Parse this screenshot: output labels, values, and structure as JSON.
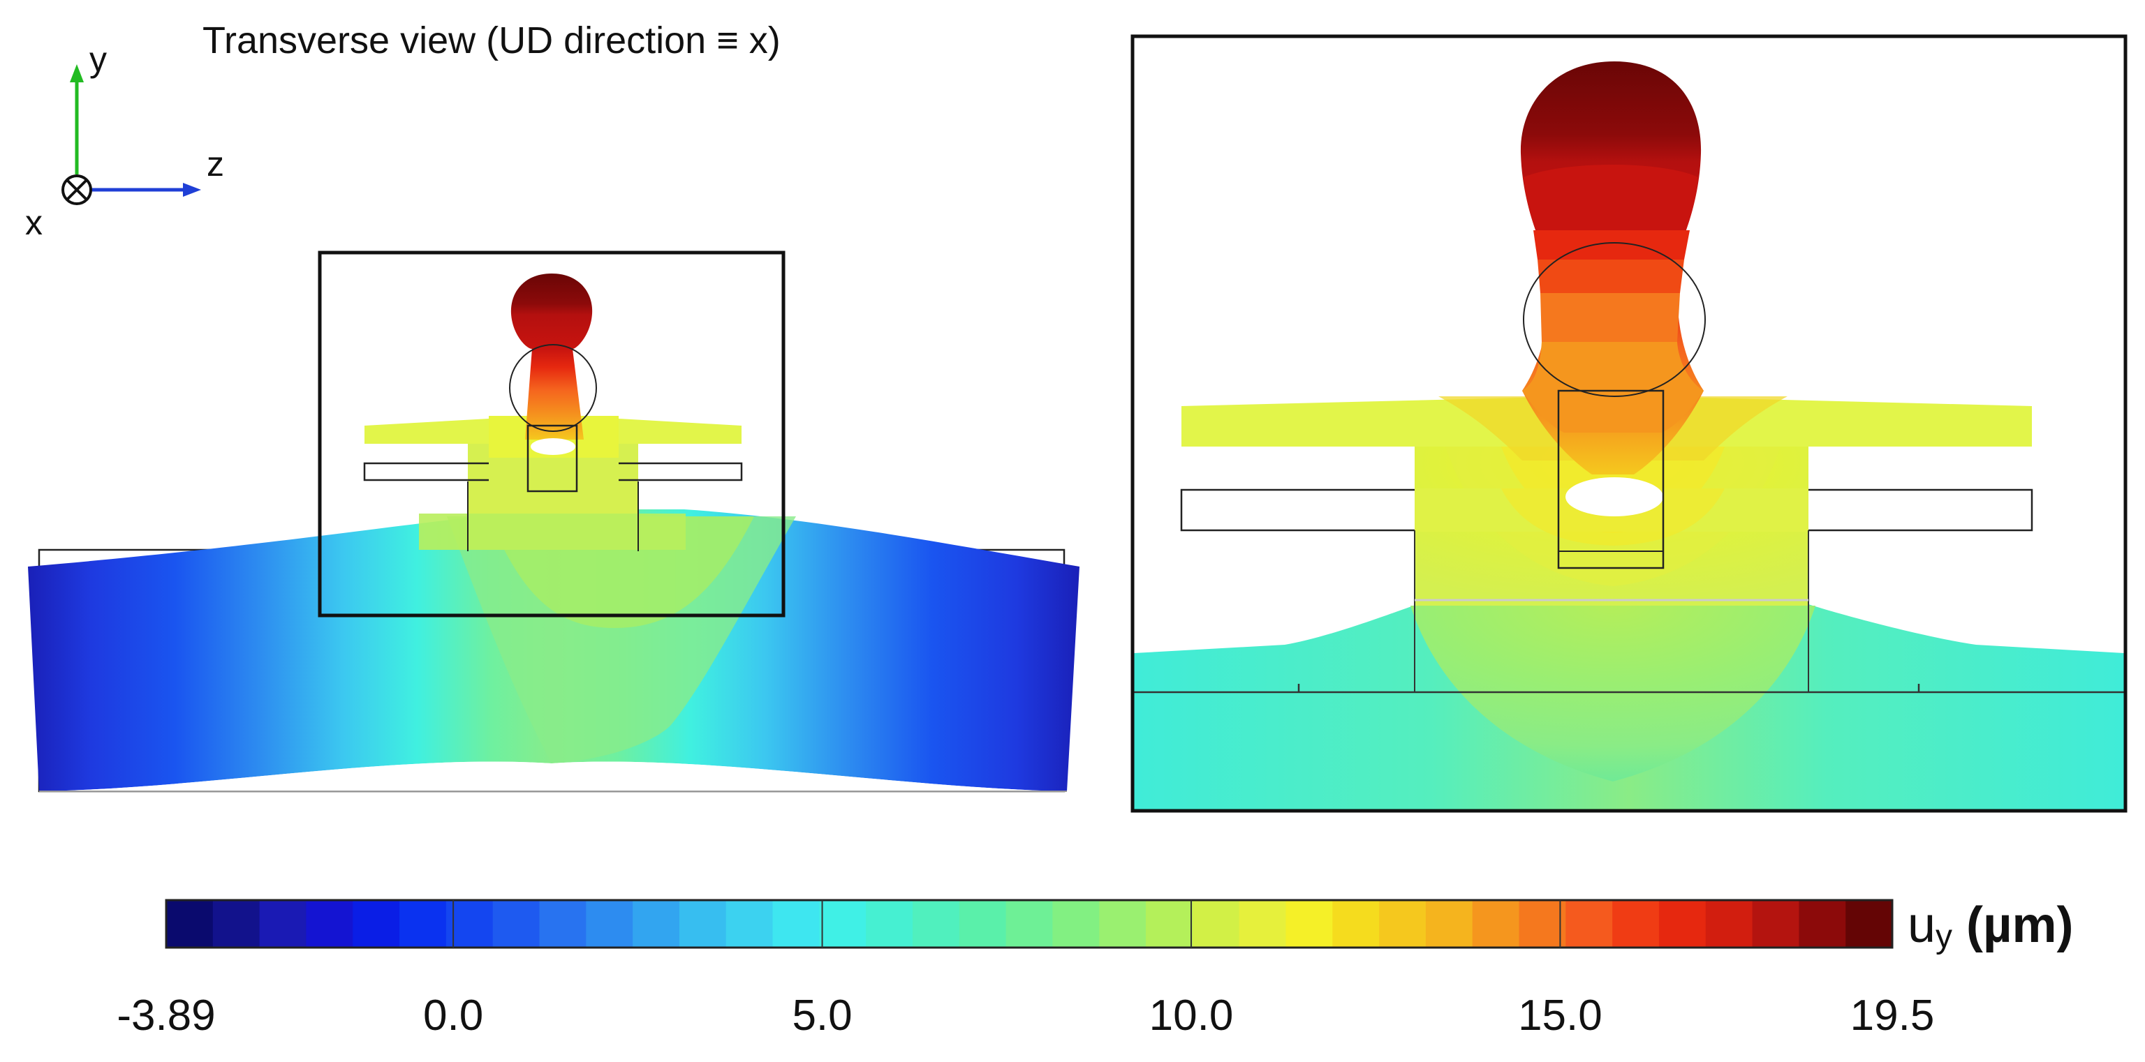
{
  "title": "Transverse view (UD direction ≡ x)",
  "axes": {
    "y_label": "y",
    "z_label": "z",
    "x_label": "x",
    "y_color": "#22bb22",
    "z_color": "#1f3fd6",
    "x_symbol": "circle-cross"
  },
  "colorbar": {
    "label": "uy (µm)",
    "label_main": "u",
    "label_sub": "y",
    "label_unit": " (µm)",
    "min": -3.89,
    "max": 19.5,
    "tick_labels": [
      "-3.89",
      "0.0",
      "5.0",
      "10.0",
      "15.0",
      "19.5"
    ],
    "tick_values": [
      -3.89,
      0.0,
      5.0,
      10.0,
      15.0,
      19.5
    ],
    "colors": [
      "#0a0a6e",
      "#12128c",
      "#1a1ab4",
      "#1414d2",
      "#0a1ee6",
      "#0a32f0",
      "#1446f0",
      "#1e5af0",
      "#2873f0",
      "#2d8cf0",
      "#32a5f0",
      "#37bef0",
      "#3cd2f0",
      "#3ee6f0",
      "#40f0e6",
      "#46f0d2",
      "#50f0be",
      "#5af0aa",
      "#6ef096",
      "#82f082",
      "#9af070",
      "#b4f05a",
      "#d2f046",
      "#e6f03c",
      "#f5f028",
      "#f5dc1e",
      "#f5c81e",
      "#f5b41e",
      "#f5961e",
      "#f5781e",
      "#f55a1e",
      "#f03c14",
      "#e6280f",
      "#d21e0f",
      "#b4140f",
      "#8c0a0a",
      "#640505"
    ]
  },
  "colors": {
    "deep_blue": "#1f2fd0",
    "cyan": "#3ee6f0",
    "green": "#8ee88a",
    "yellow_green": "#dcf55a",
    "orange": "#f5961e",
    "red": "#c80f0f",
    "dark_red": "#7a0a0a"
  }
}
